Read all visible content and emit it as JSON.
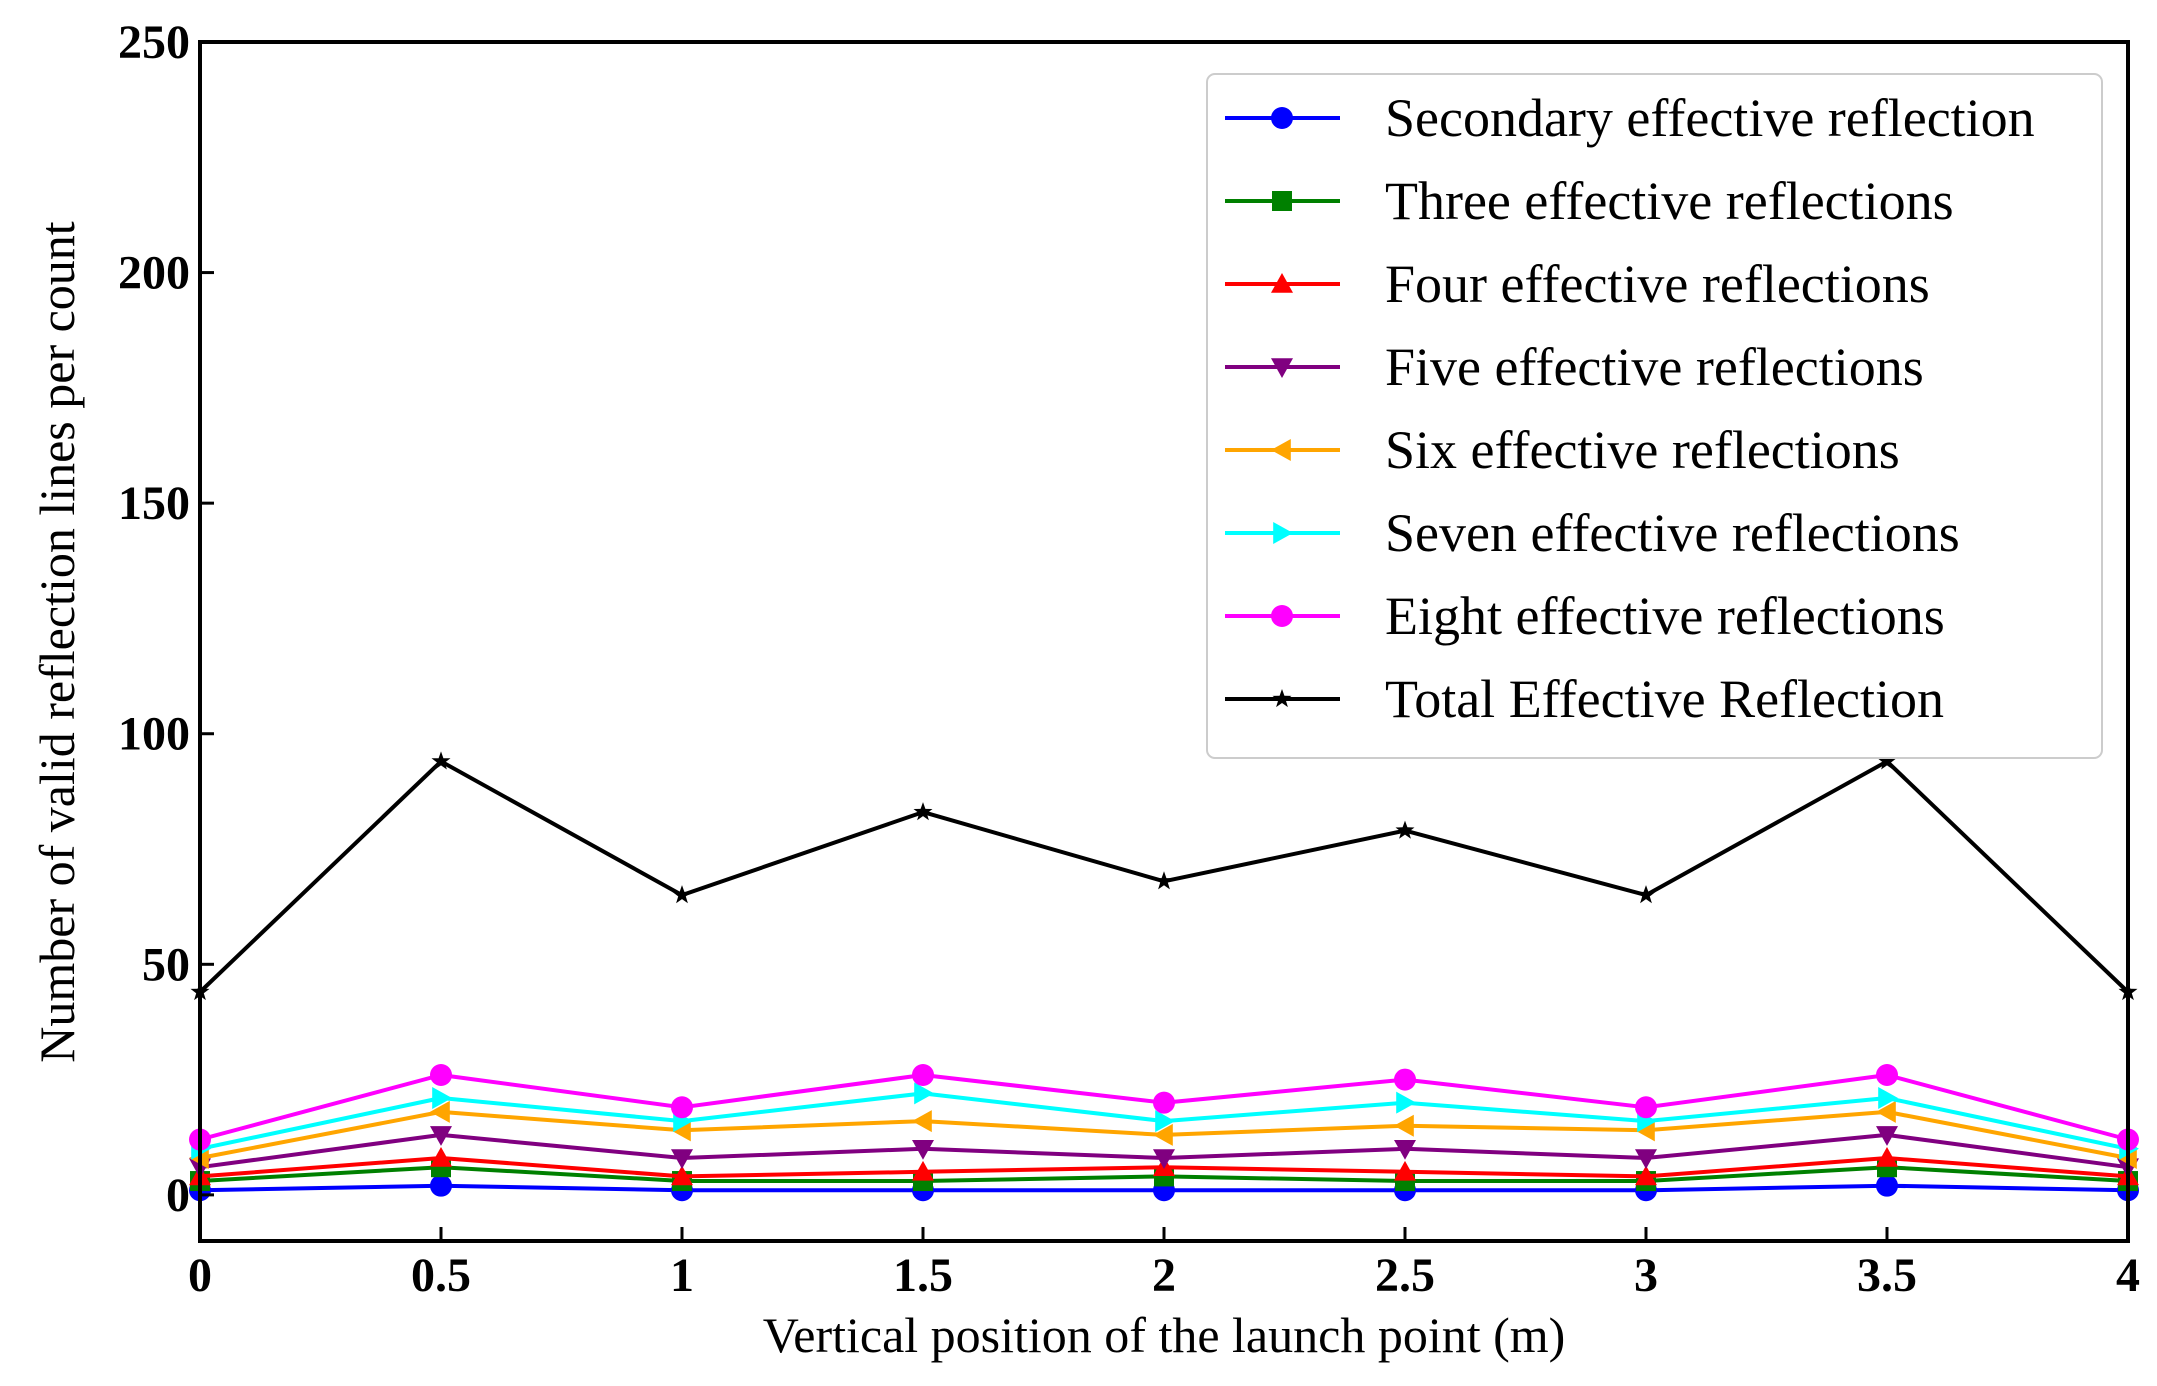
{
  "chart_data": {
    "type": "line",
    "title": "",
    "xlabel": "Vertical position of the launch point (m)",
    "ylabel": "Number of valid reflection lines per count",
    "xlim": [
      0,
      4
    ],
    "ylim": [
      -10,
      250
    ],
    "x": [
      0,
      0.5,
      1,
      1.5,
      2,
      2.5,
      3,
      3.5,
      4
    ],
    "x_ticks": [
      0,
      0.5,
      1,
      1.5,
      2,
      2.5,
      3,
      3.5,
      4
    ],
    "x_tick_labels": [
      "0",
      "0.5",
      "1",
      "1.5",
      "2",
      "2.5",
      "3",
      "3.5",
      "4"
    ],
    "y_ticks": [
      0,
      50,
      100,
      150,
      200,
      250
    ],
    "y_tick_labels": [
      "0",
      "50",
      "100",
      "150",
      "200",
      "250"
    ],
    "legend_position": "top-right",
    "grid": false,
    "series": [
      {
        "name": "Secondary effective reflection",
        "color": "#0000ff",
        "marker": "circle",
        "values": [
          1,
          2,
          1,
          1,
          1,
          1,
          1,
          2,
          1
        ]
      },
      {
        "name": "Three effective reflections",
        "color": "#008000",
        "marker": "square",
        "values": [
          3,
          6,
          3,
          3,
          4,
          3,
          3,
          6,
          3
        ]
      },
      {
        "name": "Four effective reflections",
        "color": "#ff0000",
        "marker": "triangle-up",
        "values": [
          4,
          8,
          4,
          5,
          6,
          5,
          4,
          8,
          4
        ]
      },
      {
        "name": "Five effective reflections",
        "color": "#800080",
        "marker": "triangle-down",
        "values": [
          6,
          13,
          8,
          10,
          8,
          10,
          8,
          13,
          6
        ]
      },
      {
        "name": "Six effective reflections",
        "color": "#ffa500",
        "marker": "triangle-left",
        "values": [
          8,
          18,
          14,
          16,
          13,
          15,
          14,
          18,
          8
        ]
      },
      {
        "name": "Seven effective reflections",
        "color": "#00ffff",
        "marker": "triangle-right",
        "values": [
          10,
          21,
          16,
          22,
          16,
          20,
          16,
          21,
          10
        ]
      },
      {
        "name": "Eight effective reflections",
        "color": "#ff00ff",
        "marker": "circle",
        "values": [
          12,
          26,
          19,
          26,
          20,
          25,
          19,
          26,
          12
        ]
      },
      {
        "name": "Total Effective Reflection",
        "color": "#000000",
        "marker": "star",
        "values": [
          44,
          94,
          65,
          83,
          68,
          79,
          65,
          94,
          44
        ]
      }
    ]
  }
}
